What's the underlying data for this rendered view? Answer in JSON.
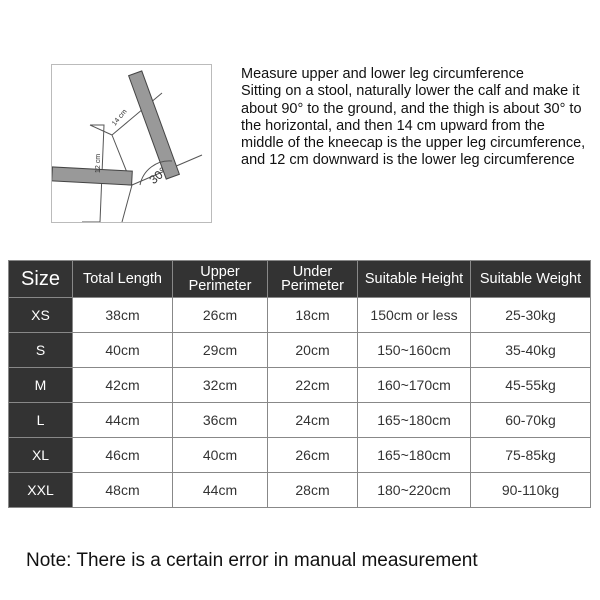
{
  "illustration": {
    "label_upper": "14 cm",
    "label_lower": "12 cm",
    "angle": "30°"
  },
  "instructions": [
    "Measure upper and lower leg circumference",
    "Sitting on a stool, naturally lower the calf and make it about 90° to the ground, and the thigh is about 30° to the horizontal, and then 14 cm upward from the middle of the kneecap is the upper leg circumference, and 12 cm downward is the lower leg circumference"
  ],
  "table": {
    "headers": [
      "Size",
      "Total Length",
      "Upper Perimeter",
      "Under Perimeter",
      "Suitable Height",
      "Suitable Weight"
    ],
    "rows": [
      [
        "XS",
        "38cm",
        "26cm",
        "18cm",
        "150cm or less",
        "25-30kg"
      ],
      [
        "S",
        "40cm",
        "29cm",
        "20cm",
        "150~160cm",
        "35-40kg"
      ],
      [
        "M",
        "42cm",
        "32cm",
        "22cm",
        "160~170cm",
        "45-55kg"
      ],
      [
        "L",
        "44cm",
        "36cm",
        "24cm",
        "165~180cm",
        "60-70kg"
      ],
      [
        "XL",
        "46cm",
        "40cm",
        "26cm",
        "165~180cm",
        "75-85kg"
      ],
      [
        "XXL",
        "48cm",
        "44cm",
        "28cm",
        "180~220cm",
        "90-110kg"
      ]
    ]
  },
  "note": "Note: There is a certain error in manual measurement"
}
